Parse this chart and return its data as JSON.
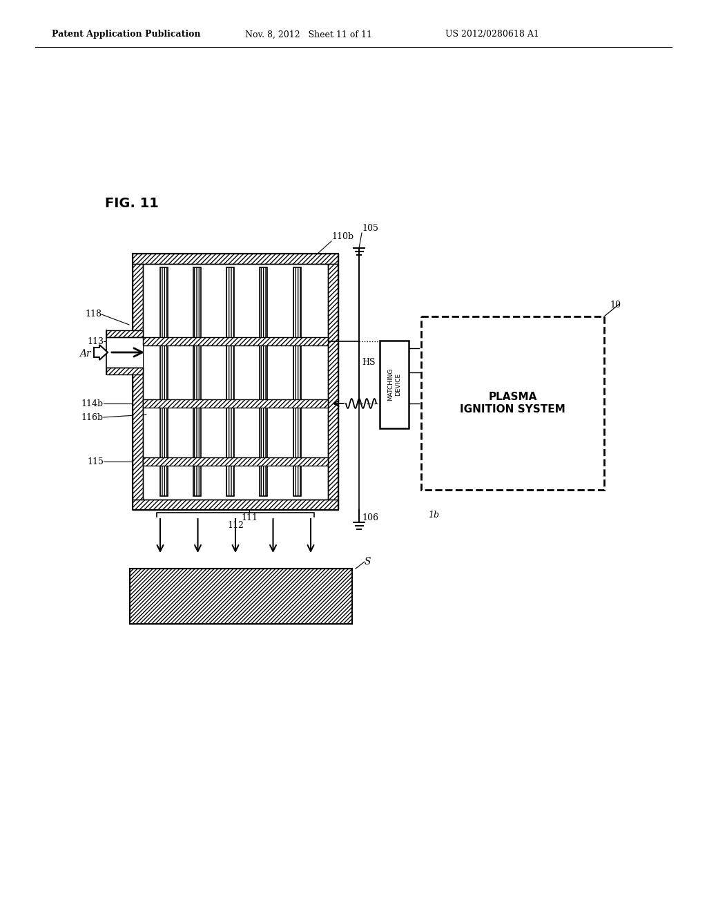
{
  "header_left": "Patent Application Publication",
  "header_mid": "Nov. 8, 2012   Sheet 11 of 11",
  "header_right": "US 2012/0280618 A1",
  "fig_label": "FIG. 11",
  "bg_color": "#ffffff",
  "lc": "#000000",
  "label_fs": 9,
  "title_fs": 14,
  "header_fs": 9
}
